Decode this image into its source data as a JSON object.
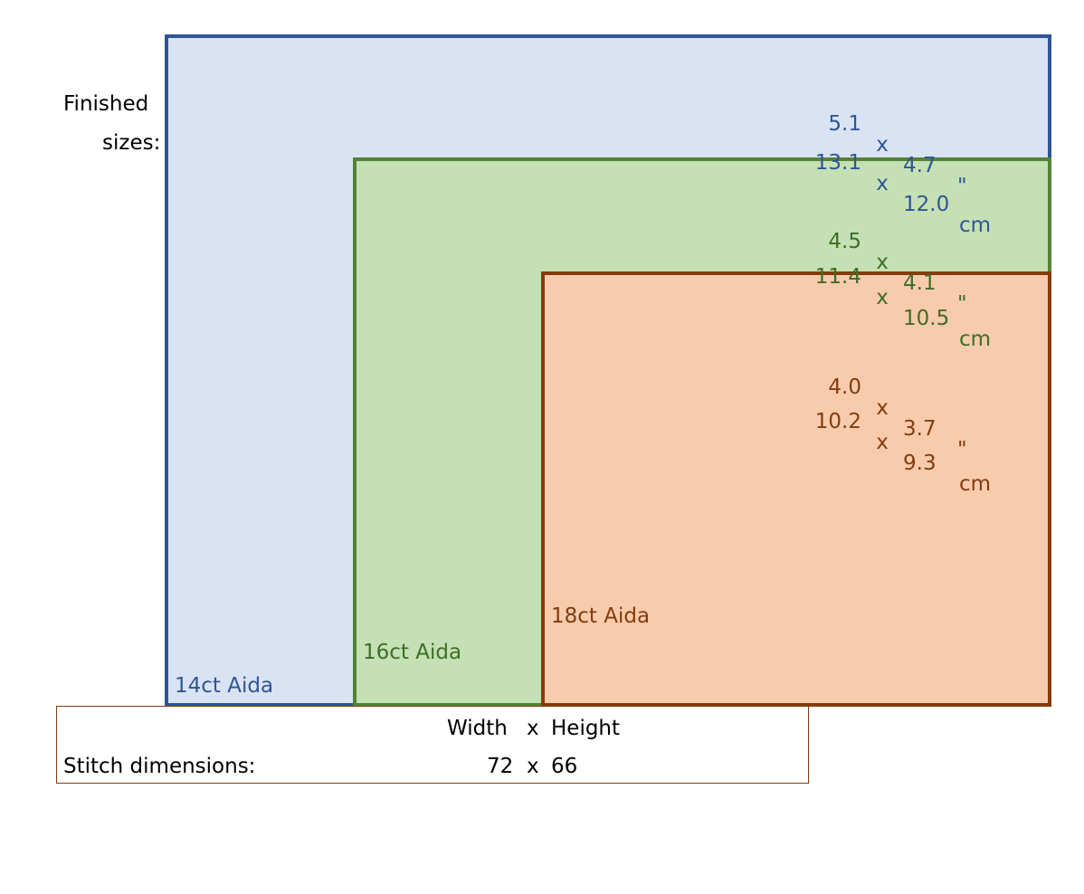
{
  "finished_label": {
    "line1": "Finished",
    "line2": "sizes:"
  },
  "fabrics": [
    {
      "label": "14ct Aida",
      "color": "#2f5597",
      "fill": "#dae3f3",
      "inches": {
        "width": "5.1",
        "height": "4.7",
        "unit": "\""
      },
      "cm": {
        "width": "13.1",
        "height": "12.0",
        "unit": "cm"
      }
    },
    {
      "label": "16ct Aida",
      "color": "#548235",
      "fill": "#c5e0b4",
      "inches": {
        "width": "4.5",
        "height": "4.1",
        "unit": "\""
      },
      "cm": {
        "width": "11.4",
        "height": "10.5",
        "unit": "cm"
      }
    },
    {
      "label": "18ct Aida",
      "color": "#843c0c",
      "fill": "#f8cbad",
      "inches": {
        "width": "4.0",
        "height": "3.7",
        "unit": "\""
      },
      "cm": {
        "width": "10.2",
        "height": "9.3",
        "unit": "cm"
      }
    }
  ],
  "times_symbol": "x",
  "stitch": {
    "label": "Stitch dimensions:",
    "header_width": "Width",
    "header_height": "Height",
    "width": "72",
    "height": "66"
  }
}
